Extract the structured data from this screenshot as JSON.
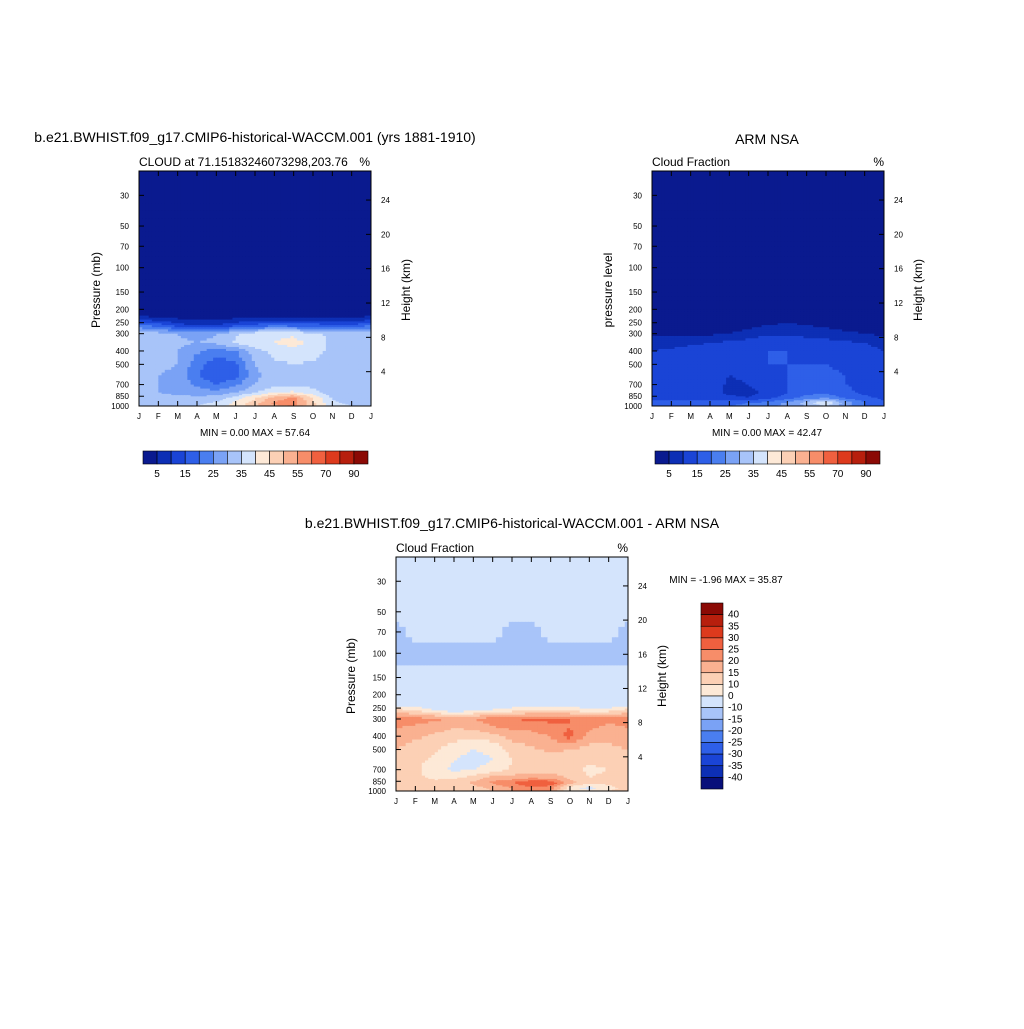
{
  "chart_data": [
    {
      "type": "heatmap",
      "title": "b.e21.BWHIST.f09_g17.CMIP6-historical-WACCM.001 (yrs 1881-1910)",
      "subtitle_left": "CLOUD at 71.15183246073298,203.76",
      "subtitle_right": "%",
      "ylabel": "Pressure (mb)",
      "ylabel_right": "Height (km)",
      "minmax": "MIN =   0.00 MAX =  57.64",
      "x_ticks": [
        "J",
        "F",
        "M",
        "A",
        "M",
        "J",
        "J",
        "A",
        "S",
        "O",
        "N",
        "D",
        "J"
      ],
      "y_ticks": [
        "30",
        "50",
        "70",
        "100",
        "150",
        "200",
        "250",
        "300",
        "400",
        "500",
        "700",
        "850",
        "1000"
      ],
      "y_ticks_right": [
        "24",
        "20",
        "16",
        "12",
        "8",
        "4"
      ],
      "y_axis_scale": "log",
      "colorbar_orientation": "horizontal",
      "colorbar_labels": [
        "5",
        "15",
        "25",
        "35",
        "45",
        "55",
        "70",
        "90"
      ],
      "colorbar_levels": [
        0,
        5,
        10,
        15,
        20,
        25,
        30,
        35,
        40,
        45,
        50,
        55,
        60,
        70,
        80,
        90
      ],
      "profile_pressure": [
        30,
        50,
        70,
        100,
        150,
        200,
        230,
        260,
        300,
        350,
        400,
        500,
        600,
        700,
        800,
        870,
        950,
        1000
      ],
      "field_pct": [
        [
          0,
          0,
          0,
          0,
          0,
          0,
          0,
          0,
          0,
          0,
          0,
          0,
          0
        ],
        [
          0,
          0,
          0,
          0,
          0,
          0,
          0,
          0,
          0,
          0,
          0,
          0,
          0
        ],
        [
          0,
          0,
          0,
          0,
          0,
          0,
          0,
          0,
          0,
          0,
          0,
          0,
          0
        ],
        [
          0,
          0,
          0,
          0,
          0,
          0,
          0,
          0,
          0,
          0,
          0,
          0,
          0
        ],
        [
          0,
          0,
          0,
          0,
          0,
          0,
          0,
          0,
          0,
          0,
          0,
          0,
          0
        ],
        [
          2,
          2,
          1,
          1,
          1,
          1,
          2,
          2,
          2,
          2,
          2,
          1,
          2
        ],
        [
          6,
          5,
          4,
          3,
          3,
          4,
          5,
          5,
          5,
          5,
          5,
          4,
          6
        ],
        [
          20,
          17,
          12,
          9,
          10,
          13,
          16,
          18,
          17,
          17,
          15,
          15,
          20
        ],
        [
          34,
          32,
          30,
          28,
          30,
          34,
          38,
          39,
          39,
          36,
          34,
          33,
          34
        ],
        [
          33,
          32,
          31,
          30,
          31,
          36,
          39,
          40,
          42,
          38,
          34,
          33,
          33
        ],
        [
          32,
          31,
          30,
          26,
          22,
          25,
          33,
          37,
          38,
          38,
          33,
          32,
          32
        ],
        [
          32,
          31,
          30,
          22,
          17,
          19,
          30,
          34,
          35,
          34,
          32,
          31,
          32
        ],
        [
          31,
          30,
          29,
          21,
          15,
          18,
          29,
          32,
          33,
          32,
          31,
          30,
          31
        ],
        [
          31,
          30,
          29,
          24,
          20,
          24,
          30,
          33,
          34,
          33,
          31,
          30,
          31
        ],
        [
          31,
          30,
          29,
          28,
          27,
          30,
          35,
          40,
          41,
          37,
          31,
          30,
          31
        ],
        [
          32,
          31,
          31,
          31,
          32,
          37,
          44,
          52,
          56,
          44,
          34,
          32,
          32
        ],
        [
          33,
          33,
          33,
          33,
          36,
          41,
          48,
          56,
          58,
          46,
          36,
          33,
          33
        ],
        [
          35,
          35,
          35,
          35,
          38,
          42,
          49,
          54,
          55,
          46,
          38,
          35,
          35
        ]
      ]
    },
    {
      "type": "heatmap",
      "title": "ARM NSA",
      "subtitle_left": "Cloud Fraction",
      "subtitle_right": "%",
      "ylabel": "pressure level",
      "ylabel_right": "Height (km)",
      "minmax": "MIN =   0.00 MAX =  42.47",
      "x_ticks": [
        "J",
        "F",
        "M",
        "A",
        "M",
        "J",
        "J",
        "A",
        "S",
        "O",
        "N",
        "D",
        "J"
      ],
      "y_ticks": [
        "30",
        "50",
        "70",
        "100",
        "150",
        "200",
        "250",
        "300",
        "400",
        "500",
        "700",
        "850",
        "1000"
      ],
      "y_ticks_right": [
        "24",
        "20",
        "16",
        "12",
        "8",
        "4"
      ],
      "y_axis_scale": "log",
      "colorbar_orientation": "horizontal",
      "colorbar_labels": [
        "5",
        "15",
        "25",
        "35",
        "45",
        "55",
        "70",
        "90"
      ],
      "colorbar_levels": [
        0,
        5,
        10,
        15,
        20,
        25,
        30,
        35,
        40,
        45,
        50,
        55,
        60,
        70,
        80,
        90
      ],
      "profile_pressure": [
        30,
        50,
        70,
        100,
        150,
        200,
        230,
        260,
        300,
        350,
        400,
        500,
        600,
        700,
        800,
        870,
        950,
        1000
      ],
      "field_pct": [
        [
          0,
          0,
          0,
          0,
          0,
          0,
          0,
          0,
          0,
          0,
          0,
          0,
          0
        ],
        [
          0,
          0,
          0,
          0,
          0,
          0,
          0,
          0,
          0,
          0,
          0,
          0,
          0
        ],
        [
          0,
          0,
          0,
          0,
          0,
          0,
          0,
          0,
          0,
          0,
          0,
          0,
          0
        ],
        [
          0,
          0,
          0,
          0,
          0,
          0,
          0,
          0,
          0,
          0,
          0,
          0,
          0
        ],
        [
          0,
          0,
          0,
          0,
          0,
          0,
          0,
          0,
          0,
          0,
          0,
          0,
          0
        ],
        [
          0,
          0,
          0,
          0,
          0,
          0,
          0,
          0,
          0,
          0,
          0,
          0,
          0
        ],
        [
          1,
          1,
          0,
          0,
          0,
          0,
          1,
          1,
          1,
          1,
          1,
          1,
          1
        ],
        [
          2,
          2,
          2,
          2,
          2,
          3,
          5,
          6,
          5,
          4,
          3,
          2,
          2
        ],
        [
          4,
          4,
          4,
          4,
          5,
          7,
          9,
          9,
          8,
          7,
          6,
          5,
          4
        ],
        [
          8,
          8,
          9,
          10,
          11,
          12,
          14,
          14,
          13,
          12,
          11,
          10,
          8
        ],
        [
          10,
          11,
          12,
          13,
          12,
          13,
          15,
          15,
          14,
          14,
          13,
          12,
          10
        ],
        [
          12,
          13,
          14,
          13,
          11,
          12,
          15,
          15,
          15,
          15,
          14,
          13,
          12
        ],
        [
          13,
          14,
          15,
          13,
          10,
          11,
          14,
          15,
          16,
          16,
          15,
          14,
          13
        ],
        [
          13,
          14,
          14,
          13,
          9,
          10,
          13,
          15,
          17,
          17,
          15,
          14,
          13
        ],
        [
          13,
          13,
          13,
          12,
          9,
          8,
          12,
          15,
          18,
          19,
          16,
          14,
          13
        ],
        [
          14,
          14,
          13,
          13,
          11,
          10,
          13,
          17,
          22,
          24,
          19,
          16,
          14
        ],
        [
          16,
          16,
          17,
          17,
          18,
          20,
          22,
          26,
          33,
          40,
          28,
          20,
          16
        ],
        [
          16,
          16,
          17,
          18,
          20,
          22,
          24,
          26,
          30,
          35,
          26,
          20,
          16
        ]
      ]
    },
    {
      "type": "heatmap",
      "title": "b.e21.BWHIST.f09_g17.CMIP6-historical-WACCM.001 - ARM NSA",
      "subtitle_left": "Cloud Fraction",
      "subtitle_right": "%",
      "ylabel": "Pressure (mb)",
      "ylabel_right": "Height (km)",
      "minmax": "MIN =  -1.96 MAX =  35.87",
      "x_ticks": [
        "J",
        "F",
        "M",
        "A",
        "M",
        "J",
        "J",
        "A",
        "S",
        "O",
        "N",
        "D",
        "J"
      ],
      "y_ticks": [
        "30",
        "50",
        "70",
        "100",
        "150",
        "200",
        "250",
        "300",
        "400",
        "500",
        "700",
        "850",
        "1000"
      ],
      "y_ticks_right": [
        "24",
        "20",
        "16",
        "12",
        "8",
        "4"
      ],
      "y_axis_scale": "log",
      "colorbar_orientation": "vertical",
      "colorbar_labels": [
        "40",
        "35",
        "30",
        "25",
        "20",
        "15",
        "10",
        "0",
        "-10",
        "-15",
        "-20",
        "-25",
        "-30",
        "-35",
        "-40"
      ],
      "colorbar_levels": [
        -40,
        -35,
        -30,
        -25,
        -20,
        -15,
        -10,
        0,
        10,
        15,
        20,
        25,
        30,
        35,
        40
      ],
      "profile_pressure": [
        30,
        50,
        70,
        100,
        150,
        200,
        230,
        260,
        300,
        350,
        400,
        500,
        600,
        700,
        800,
        870,
        950,
        1000
      ],
      "field_pct": [
        [
          1,
          1,
          1,
          1,
          1,
          1,
          1,
          1,
          1,
          1,
          1,
          1,
          1
        ],
        [
          1,
          1,
          1,
          1,
          1,
          1,
          1,
          1,
          1,
          1,
          1,
          1,
          1
        ],
        [
          -1,
          1,
          1,
          1,
          1,
          1,
          -1,
          -1,
          1,
          1,
          1,
          1,
          -1
        ],
        [
          -1,
          -1,
          -1,
          -1,
          -1,
          -1,
          -1,
          -1,
          -1,
          -1,
          -1,
          -1,
          -1
        ],
        [
          1,
          1,
          1,
          1,
          1,
          1,
          1,
          1,
          1,
          1,
          1,
          1,
          1
        ],
        [
          2,
          2,
          2,
          2,
          2,
          2,
          2,
          2,
          2,
          2,
          2,
          2,
          2
        ],
        [
          5,
          5,
          4,
          3,
          3,
          4,
          5,
          5,
          5,
          5,
          5,
          4,
          5
        ],
        [
          17,
          15,
          10,
          7,
          9,
          11,
          13,
          14,
          14,
          14,
          12,
          13,
          17
        ],
        [
          28,
          27,
          26,
          24,
          25,
          28,
          30,
          31,
          31,
          30,
          28,
          27,
          28
        ],
        [
          25,
          24,
          22,
          20,
          21,
          24,
          26,
          26,
          29,
          30,
          26,
          23,
          25
        ],
        [
          22,
          21,
          19,
          17,
          16,
          18,
          22,
          23,
          25,
          32,
          23,
          21,
          22
        ],
        [
          20,
          18,
          16,
          12,
          10,
          11,
          17,
          19,
          21,
          20,
          18,
          19,
          20
        ],
        [
          18,
          16,
          14,
          10,
          8,
          10,
          15,
          17,
          18,
          17,
          16,
          16,
          18
        ],
        [
          18,
          16,
          12,
          9,
          10,
          12,
          16,
          17,
          17,
          16,
          14,
          15,
          18
        ],
        [
          17,
          17,
          13,
          14,
          17,
          22,
          22,
          24,
          23,
          19,
          15,
          16,
          17
        ],
        [
          18,
          17,
          18,
          18,
          21,
          26,
          30,
          35,
          34,
          22,
          16,
          17,
          18
        ],
        [
          17,
          17,
          16,
          16,
          18,
          21,
          25,
          29,
          27,
          12,
          8,
          13,
          17
        ],
        [
          19,
          19,
          18,
          17,
          18,
          20,
          25,
          28,
          25,
          11,
          12,
          15,
          19
        ]
      ]
    }
  ],
  "colors": {
    "abs_palette": [
      "#0a1a8f",
      "#0d2fb5",
      "#1a44d6",
      "#2e5fe8",
      "#4a7ef0",
      "#7aa2f5",
      "#a8c4f9",
      "#d4e4fc",
      "#fde9d7",
      "#fcd0b5",
      "#fab191",
      "#f78d69",
      "#f0603f",
      "#dd3a1d",
      "#b71f0d",
      "#8b0a05"
    ],
    "diff_palette": [
      "#080f7a",
      "#0d2fb5",
      "#1a44d6",
      "#2e5fe8",
      "#4a7ef0",
      "#7aa2f5",
      "#a8c4f9",
      "#d4e4fc",
      "#fde9d7",
      "#fcd0b5",
      "#fab191",
      "#f78d69",
      "#f0603f",
      "#dd3a1d",
      "#b71f0d",
      "#8b0a05"
    ]
  }
}
